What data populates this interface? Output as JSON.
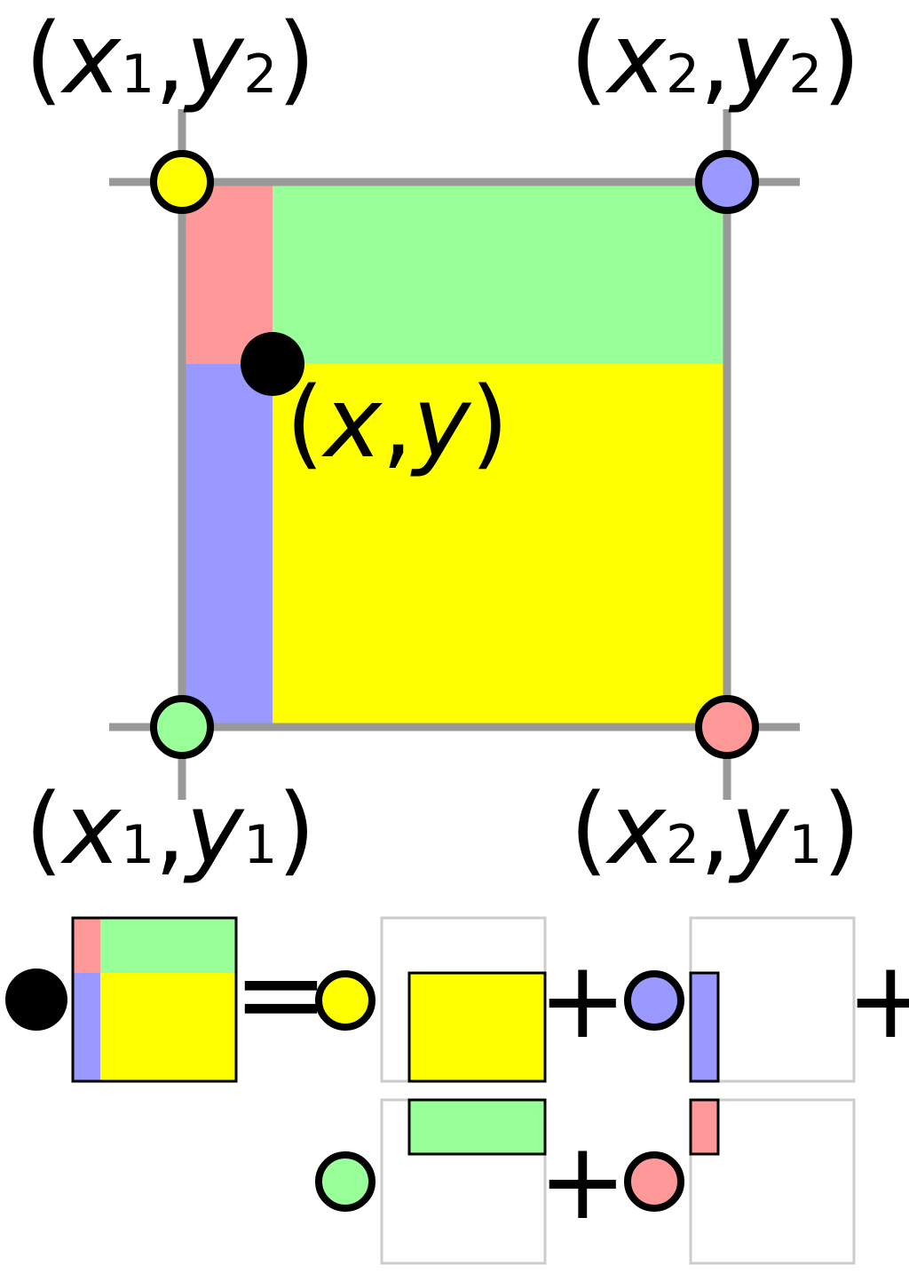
{
  "labels": {
    "top_left": {
      "open": "(",
      "v1": "x",
      "s1": "1",
      "comma": ",",
      "v2": "y",
      "s2": "2",
      "close": ")"
    },
    "top_right": {
      "open": "(",
      "v1": "x",
      "s1": "2",
      "comma": ",",
      "v2": "y",
      "s2": "2",
      "close": ")"
    },
    "bottom_left": {
      "open": "(",
      "v1": "x",
      "s1": "1",
      "comma": ",",
      "v2": "y",
      "s2": "1",
      "close": ")"
    },
    "bottom_right": {
      "open": "(",
      "v1": "x",
      "s1": "2",
      "comma": ",",
      "v2": "y",
      "s2": "1",
      "close": ")"
    },
    "point": {
      "open": "(",
      "v1": "x",
      "comma": ",",
      "v2": "y",
      "close": ")"
    }
  },
  "equation": {
    "equals": "=",
    "plus": "+"
  },
  "colors": {
    "yellow": "#ffff00",
    "blue": "#9999ff",
    "green": "#99ff99",
    "red": "#ff9999",
    "grid_gray": "#999999",
    "box_gray": "#cccccc",
    "black": "#000000"
  }
}
